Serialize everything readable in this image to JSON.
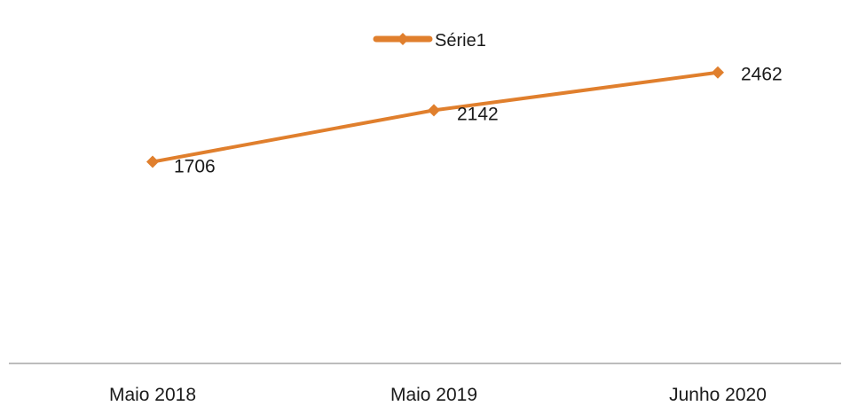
{
  "chart_data": {
    "type": "line",
    "categories": [
      "Maio 2018",
      "Maio 2019",
      "Junho 2020"
    ],
    "series": [
      {
        "name": "Série1",
        "values": [
          1706,
          2142,
          2462
        ],
        "color": "#e07f2d",
        "marker": "diamond"
      }
    ],
    "data_labels": [
      "1706",
      "2142",
      "2462"
    ],
    "title": "",
    "xlabel": "",
    "ylabel": "",
    "ylim": [
      0,
      3000
    ],
    "y_axis_visible": false,
    "grid": false,
    "legend_position": "top"
  }
}
